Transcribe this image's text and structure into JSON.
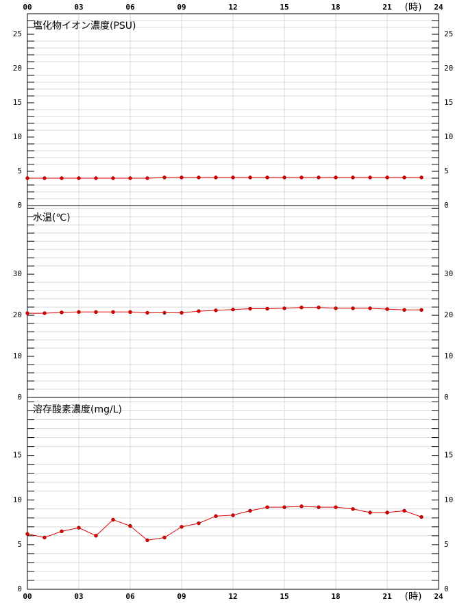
{
  "chart_data": [
    {
      "type": "line",
      "title": "塩化物イオン濃度(PSU)",
      "xlabel": "(時)",
      "color": "#e00000",
      "x": [
        0,
        1,
        2,
        3,
        4,
        5,
        6,
        7,
        8,
        9,
        10,
        11,
        12,
        13,
        14,
        15,
        16,
        17,
        18,
        19,
        20,
        21,
        22,
        23
      ],
      "values": [
        4.0,
        4.0,
        4.0,
        4.0,
        4.0,
        4.0,
        4.0,
        4.0,
        4.1,
        4.1,
        4.1,
        4.1,
        4.1,
        4.1,
        4.1,
        4.1,
        4.1,
        4.1,
        4.1,
        4.1,
        4.1,
        4.1,
        4.1,
        4.1
      ],
      "xlim": [
        0,
        24
      ],
      "xticks": [
        {
          "value": 0,
          "label": "00"
        },
        {
          "value": 3,
          "label": "03"
        },
        {
          "value": 6,
          "label": "06"
        },
        {
          "value": 9,
          "label": "09"
        },
        12,
        15,
        18,
        21,
        24
      ],
      "ylim": [
        0,
        28
      ],
      "yticks": [
        0,
        5,
        10,
        15,
        20,
        25
      ],
      "yminorticks": [
        1,
        2,
        3,
        4,
        6,
        7,
        8,
        9,
        11,
        12,
        13,
        14,
        16,
        17,
        18,
        19,
        21,
        22,
        23,
        24,
        26,
        27
      ],
      "grid": true
    },
    {
      "type": "line",
      "title": "水温(℃)",
      "color": "#e00000",
      "x": [
        0,
        1,
        2,
        3,
        4,
        5,
        6,
        7,
        8,
        9,
        10,
        11,
        12,
        13,
        14,
        15,
        16,
        17,
        18,
        19,
        20,
        21,
        22,
        23
      ],
      "values": [
        20.5,
        20.5,
        20.7,
        20.8,
        20.8,
        20.8,
        20.8,
        20.6,
        20.6,
        20.6,
        21.0,
        21.2,
        21.4,
        21.6,
        21.6,
        21.7,
        21.9,
        21.9,
        21.7,
        21.7,
        21.7,
        21.5,
        21.3,
        21.3
      ],
      "xlim": [
        0,
        24
      ],
      "xticks": [
        {
          "value": 0,
          "label": "00"
        },
        {
          "value": 3,
          "label": "03"
        },
        {
          "value": 6,
          "label": "06"
        },
        {
          "value": 9,
          "label": "09"
        },
        12,
        15,
        18,
        21,
        24
      ],
      "ylim": [
        0,
        46.7
      ],
      "yticks": [
        0,
        10,
        20,
        30
      ],
      "yminorticks": [
        2,
        4,
        6,
        8,
        12,
        14,
        16,
        18,
        22,
        24,
        26,
        28,
        32,
        34,
        36,
        38,
        40,
        42,
        44,
        46
      ],
      "grid": true
    },
    {
      "type": "line",
      "title": "溶存酸素濃度(mg/L)",
      "xlabel": "(時)",
      "color": "#e00000",
      "x": [
        0,
        1,
        2,
        3,
        4,
        5,
        6,
        7,
        8,
        9,
        10,
        11,
        12,
        13,
        14,
        15,
        16,
        17,
        18,
        19,
        20,
        21,
        22,
        23
      ],
      "values": [
        6.2,
        5.8,
        6.5,
        6.9,
        6.0,
        7.8,
        7.1,
        5.5,
        5.8,
        7.0,
        7.4,
        8.2,
        8.3,
        8.8,
        9.2,
        9.2,
        9.3,
        9.2,
        9.2,
        9.0,
        8.6,
        8.6,
        8.8,
        8.1
      ],
      "xlim": [
        0,
        24
      ],
      "xticks": [
        {
          "value": 0,
          "label": "00"
        },
        {
          "value": 3,
          "label": "03"
        },
        {
          "value": 6,
          "label": "06"
        },
        {
          "value": 9,
          "label": "09"
        },
        12,
        15,
        18,
        21,
        24
      ],
      "ylim": [
        0,
        21.5
      ],
      "yticks": [
        0,
        5,
        10,
        15
      ],
      "yminorticks": [
        1,
        2,
        3,
        4,
        6,
        7,
        8,
        9,
        11,
        12,
        13,
        14,
        16,
        17,
        18,
        19,
        20,
        21
      ],
      "grid": true
    }
  ]
}
